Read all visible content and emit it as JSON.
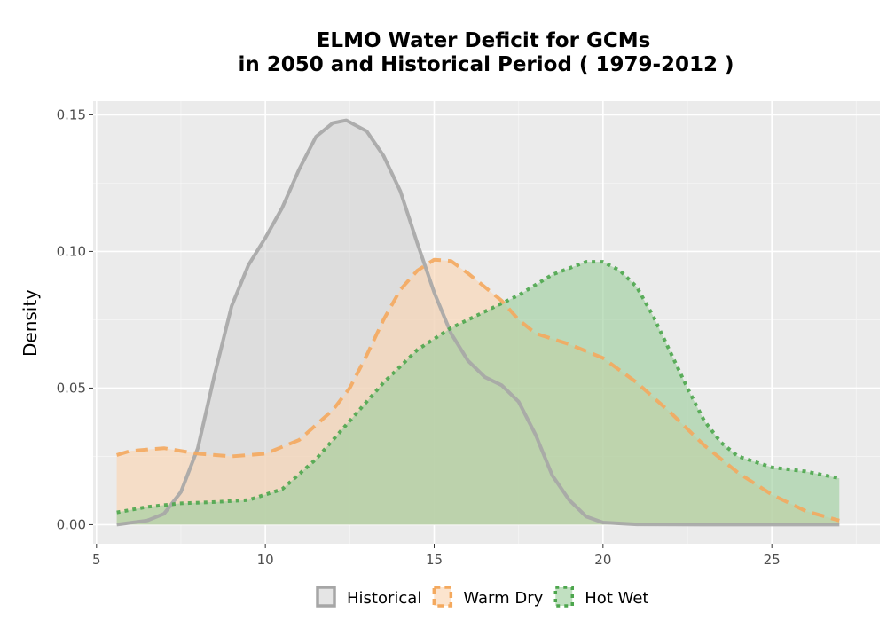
{
  "chart_data": {
    "type": "area",
    "title_line1": "ELMO  Water Deficit for GCMs",
    "title_line2": "in 2050 and Historical Period ( 1979-2012 )",
    "xlabel": "",
    "ylabel": "Density",
    "xlim": [
      4.9,
      28.2
    ],
    "ylim": [
      -0.007,
      0.155
    ],
    "xticks": [
      5,
      10,
      15,
      20,
      25
    ],
    "xtick_labels": [
      "5",
      "10",
      "15",
      "20",
      "25"
    ],
    "yticks": [
      0.0,
      0.05,
      0.1,
      0.15
    ],
    "ytick_labels": [
      "0.00",
      "0.05",
      "0.10",
      "0.15"
    ],
    "grid": true,
    "legend_position": "bottom",
    "series": [
      {
        "name": "Historical",
        "line_color": "#a6a6a6",
        "fill_color": "#d3d3d3",
        "fill_opacity": 0.6,
        "dash": "solid",
        "points": [
          [
            5.6,
            0.0
          ],
          [
            6.5,
            0.0015
          ],
          [
            7.0,
            0.004
          ],
          [
            7.5,
            0.012
          ],
          [
            8.0,
            0.028
          ],
          [
            8.5,
            0.055
          ],
          [
            9.0,
            0.08
          ],
          [
            9.5,
            0.095
          ],
          [
            10.0,
            0.105
          ],
          [
            10.5,
            0.116
          ],
          [
            11.0,
            0.13
          ],
          [
            11.5,
            0.142
          ],
          [
            12.0,
            0.147
          ],
          [
            12.4,
            0.148
          ],
          [
            13.0,
            0.144
          ],
          [
            13.5,
            0.135
          ],
          [
            14.0,
            0.122
          ],
          [
            14.5,
            0.103
          ],
          [
            15.0,
            0.085
          ],
          [
            15.5,
            0.07
          ],
          [
            16.0,
            0.06
          ],
          [
            16.5,
            0.054
          ],
          [
            17.0,
            0.051
          ],
          [
            17.5,
            0.045
          ],
          [
            18.0,
            0.033
          ],
          [
            18.5,
            0.018
          ],
          [
            19.0,
            0.009
          ],
          [
            19.5,
            0.003
          ],
          [
            20.0,
            0.0008
          ],
          [
            21.0,
            0.0001
          ],
          [
            23.0,
            0.0
          ],
          [
            27.0,
            0.0
          ]
        ]
      },
      {
        "name": "Warm Dry",
        "line_color": "#f4a95e",
        "fill_color": "#fbd6b4",
        "fill_opacity": 0.65,
        "dash": "14,8",
        "points": [
          [
            5.6,
            0.0255
          ],
          [
            6.0,
            0.027
          ],
          [
            7.0,
            0.028
          ],
          [
            8.0,
            0.026
          ],
          [
            9.0,
            0.025
          ],
          [
            10.0,
            0.026
          ],
          [
            11.0,
            0.031
          ],
          [
            12.0,
            0.042
          ],
          [
            12.5,
            0.05
          ],
          [
            13.0,
            0.062
          ],
          [
            13.5,
            0.075
          ],
          [
            14.0,
            0.086
          ],
          [
            14.5,
            0.093
          ],
          [
            15.0,
            0.097
          ],
          [
            15.5,
            0.0965
          ],
          [
            16.0,
            0.092
          ],
          [
            16.5,
            0.087
          ],
          [
            17.0,
            0.082
          ],
          [
            17.5,
            0.075
          ],
          [
            18.0,
            0.07
          ],
          [
            19.0,
            0.066
          ],
          [
            20.0,
            0.061
          ],
          [
            21.0,
            0.052
          ],
          [
            22.0,
            0.041
          ],
          [
            23.0,
            0.029
          ],
          [
            24.0,
            0.019
          ],
          [
            25.0,
            0.011
          ],
          [
            26.0,
            0.005
          ],
          [
            27.0,
            0.0015
          ]
        ]
      },
      {
        "name": "Hot Wet",
        "line_color": "#4da64d",
        "fill_color": "#a0d0a0",
        "fill_opacity": 0.65,
        "dash": "4,5",
        "points": [
          [
            5.6,
            0.0045
          ],
          [
            6.5,
            0.0065
          ],
          [
            7.5,
            0.0078
          ],
          [
            8.5,
            0.0083
          ],
          [
            9.5,
            0.009
          ],
          [
            10.5,
            0.013
          ],
          [
            11.5,
            0.024
          ],
          [
            12.5,
            0.038
          ],
          [
            13.5,
            0.052
          ],
          [
            14.5,
            0.064
          ],
          [
            15.5,
            0.072
          ],
          [
            16.5,
            0.078
          ],
          [
            17.5,
            0.084
          ],
          [
            18.5,
            0.0915
          ],
          [
            19.5,
            0.0962
          ],
          [
            20.0,
            0.0962
          ],
          [
            20.5,
            0.093
          ],
          [
            21.0,
            0.087
          ],
          [
            21.5,
            0.076
          ],
          [
            22.0,
            0.063
          ],
          [
            22.5,
            0.05
          ],
          [
            23.0,
            0.038
          ],
          [
            23.5,
            0.03
          ],
          [
            24.0,
            0.025
          ],
          [
            25.0,
            0.021
          ],
          [
            26.0,
            0.0195
          ],
          [
            27.0,
            0.017
          ]
        ]
      }
    ]
  }
}
